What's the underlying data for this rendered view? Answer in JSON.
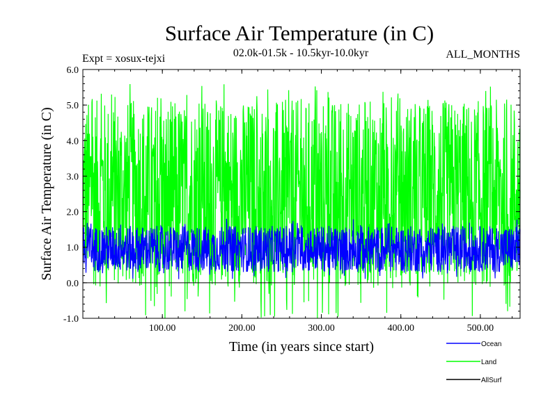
{
  "chart_data": {
    "type": "line",
    "title": "Surface Air Temperature (in C)",
    "subtitle_left": "Expt = xosux-tejxi",
    "subtitle_center": "02.0k-01.5k - 10.5kyr-10.0kyr",
    "subtitle_right": "ALL_MONTHS",
    "xlabel": "Time (in years since start)",
    "ylabel": "Surface Air Temperature (in C)",
    "xlim": [
      0,
      550
    ],
    "ylim": [
      -1.0,
      6.0
    ],
    "xticks": [
      100,
      200,
      300,
      400,
      500
    ],
    "xtick_labels": [
      "100.00",
      "200.00",
      "300.00",
      "400.00",
      "500.00"
    ],
    "yticks": [
      -1.0,
      0.0,
      1.0,
      2.0,
      3.0,
      4.0,
      5.0,
      6.0
    ],
    "ytick_labels": [
      "-1.0",
      "0.0",
      "1.0",
      "2.0",
      "3.0",
      "4.0",
      "5.0",
      "6.0"
    ],
    "reference_line_y": 0.0,
    "series": [
      {
        "name": "Land",
        "color": "#00ff00",
        "mean": 2.5,
        "typical_min": -0.3,
        "typical_max": 5.0,
        "extreme_min": -1.0,
        "extreme_max": 5.6
      },
      {
        "name": "Ocean",
        "color": "#0000ff",
        "mean": 0.95,
        "typical_min": 0.3,
        "typical_max": 1.6,
        "extreme_min": 0.1,
        "extreme_max": 1.8
      },
      {
        "name": "AllSurf",
        "color": "#000000"
      }
    ],
    "legend": [
      "Ocean",
      "Land",
      "AllSurf"
    ]
  }
}
